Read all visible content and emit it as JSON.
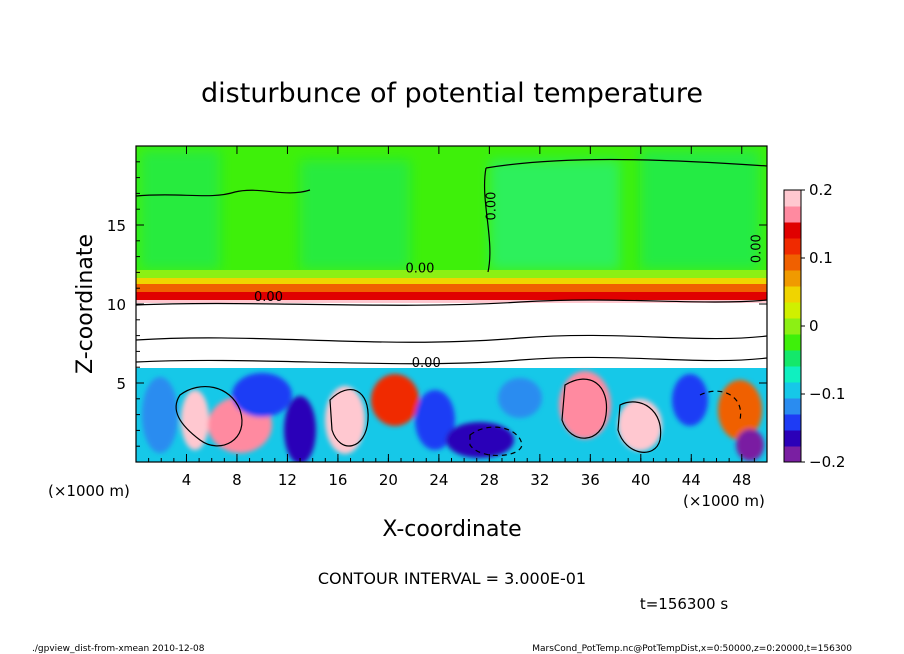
{
  "chart_data": {
    "type": "heatmap",
    "title": "disturbunce of potential temperature",
    "xlabel": "X-coordinate",
    "ylabel": "Z-coordinate",
    "x_unit_left": "(×1000 m)",
    "x_unit_right": "(×1000 m)",
    "xlim": [
      0,
      50
    ],
    "ylim": [
      0,
      20
    ],
    "xticks": [
      "4",
      "8",
      "12",
      "16",
      "20",
      "24",
      "28",
      "32",
      "36",
      "40",
      "44",
      "48"
    ],
    "yticks": [
      "5",
      "10",
      "15"
    ],
    "colorbar": {
      "range": [
        -0.2,
        0.2
      ],
      "tick_labels": [
        "0.2",
        "0.1",
        "0",
        "−0.1",
        "−0.2"
      ],
      "tick_values": [
        0.2,
        0.1,
        0,
        -0.1,
        -0.2
      ],
      "colors": [
        "#7a1fa2",
        "#2b00b8",
        "#1e3cf5",
        "#2a8cf0",
        "#16c8e8",
        "#0ff0c0",
        "#14e86a",
        "#3ef00a",
        "#8cf014",
        "#d0f000",
        "#f0d400",
        "#f09a00",
        "#f06000",
        "#f02a00",
        "#e00000",
        "#ff8aa0",
        "#ffc8d0"
      ]
    },
    "contour_labels": [
      "0.00",
      "0.00",
      "0.00",
      "0.00",
      "0.00"
    ],
    "contour_interval_text": "CONTOUR INTERVAL = 3.000E-01",
    "time_text": "t=156300 s"
  },
  "footer": {
    "left": "./gpview_dist-from-xmean  2010-12-08",
    "right": "MarsCond_PotTemp.nc@PotTempDist,x=0:50000,z=0:20000,t=156300"
  }
}
